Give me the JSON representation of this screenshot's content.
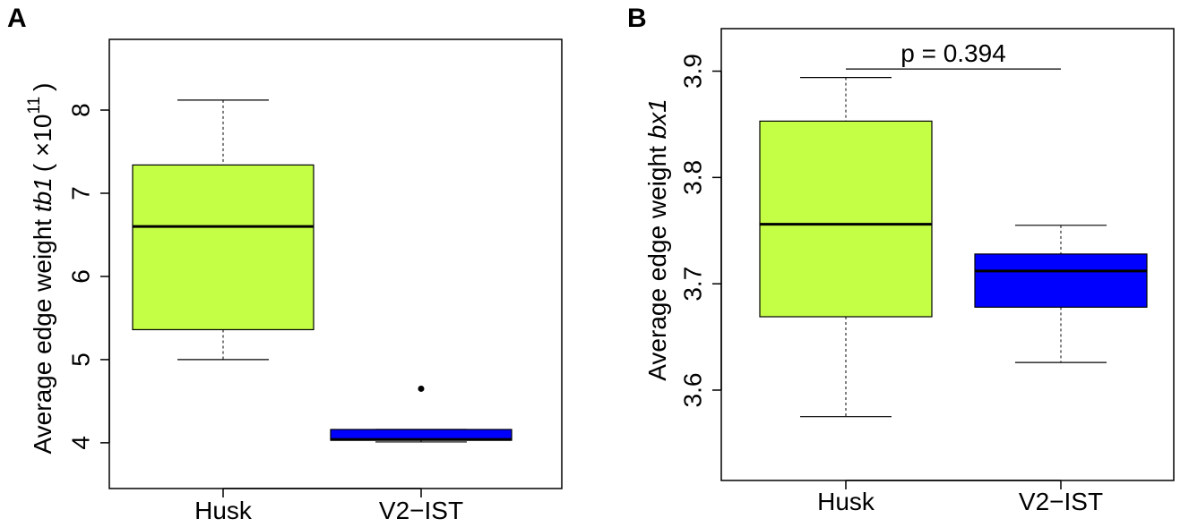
{
  "panels": [
    {
      "label": "A",
      "ylabel": {
        "prefix": "Average edge weight ",
        "gene": "tb1",
        "scale": "( ×10",
        "exp": "11",
        "close": ")"
      },
      "annotation": null
    },
    {
      "label": "B",
      "ylabel": {
        "prefix": "Average edge weight ",
        "gene": "bx1"
      },
      "annotation": "p = 0.394"
    }
  ],
  "colors": {
    "husk": "#c4ff45",
    "v2ist": "#0000ff",
    "median": "#000000"
  },
  "chart_data": [
    {
      "type": "box",
      "title": "",
      "ylabel": "Average edge weight tb1 ( ×10^11 )",
      "ylim": [
        3.45,
        8.85
      ],
      "yticks": [
        4,
        5,
        6,
        7,
        8
      ],
      "categories": [
        "Husk",
        "V2−IST"
      ],
      "boxes": [
        {
          "category": "Husk",
          "min": 5.0,
          "q1": 5.36,
          "median": 6.6,
          "q3": 7.34,
          "max": 8.12,
          "outliers": [],
          "color": "husk"
        },
        {
          "category": "V2−IST",
          "min": 4.01,
          "q1": 4.03,
          "median": 4.04,
          "q3": 4.16,
          "max": 4.16,
          "outliers": [
            4.65
          ],
          "color": "v2ist"
        }
      ]
    },
    {
      "type": "box",
      "title": "",
      "ylabel": "Average edge weight bx1",
      "ylim": [
        3.515,
        3.94
      ],
      "yticks": [
        3.6,
        3.7,
        3.8,
        3.9
      ],
      "categories": [
        "Husk",
        "V2−IST"
      ],
      "boxes": [
        {
          "category": "Husk",
          "min": 3.575,
          "q1": 3.669,
          "median": 3.756,
          "q3": 3.853,
          "max": 3.894,
          "outliers": [],
          "color": "husk"
        },
        {
          "category": "V2−IST",
          "min": 3.626,
          "q1": 3.678,
          "median": 3.712,
          "q3": 3.728,
          "max": 3.755,
          "outliers": [],
          "color": "v2ist"
        }
      ],
      "annotations": [
        {
          "text": "p = 0.394",
          "y": 3.902,
          "between": [
            "Husk",
            "V2−IST"
          ]
        }
      ]
    }
  ]
}
